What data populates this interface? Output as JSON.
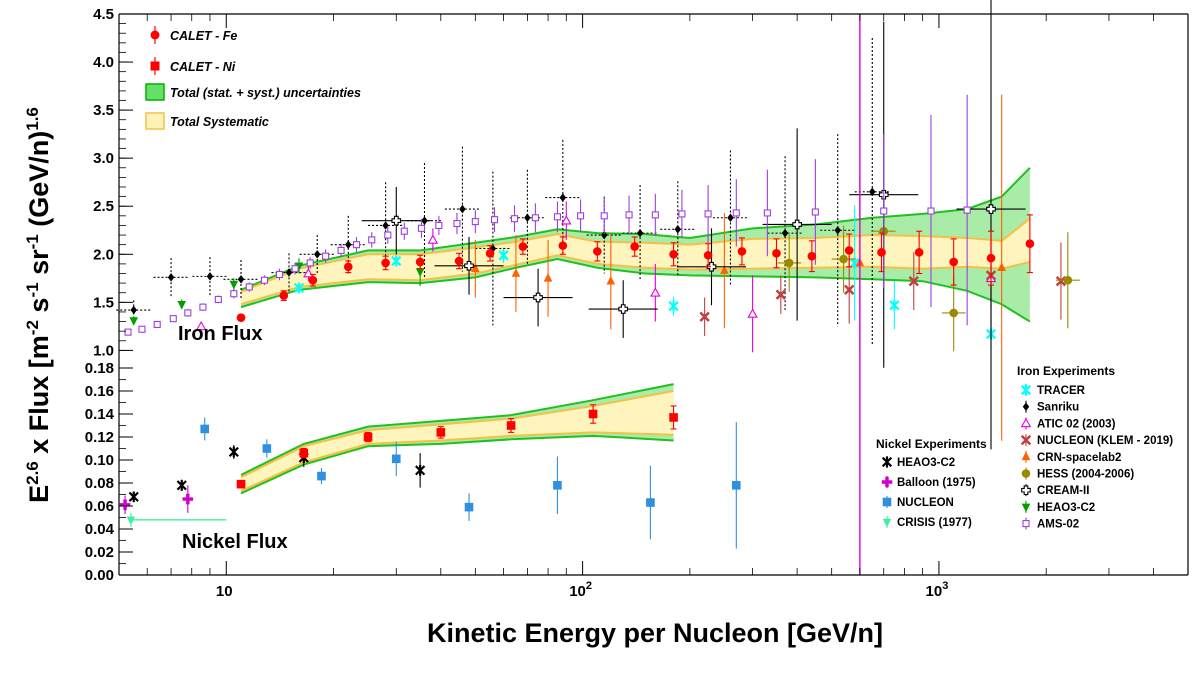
{
  "chart_data": {
    "type": "scatter",
    "xlabel": "Kinetic Energy per Nucleon [GeV/n]",
    "ylabel": "E^2.6 x Flux [m^-2 s^-1 sr^-1 (GeV/n)^1.6]",
    "ylabel_parts": {
      "e": "E",
      "e_exp": "2.6",
      "mid": " x Flux [m",
      "m_exp": "-2",
      "s": " s",
      "s_exp": "-1",
      "sr": " sr",
      "sr_exp": "-1",
      "gev": " (GeV/n)",
      "gev_exp": "1.6"
    },
    "x_scale": "log",
    "xlim": [
      5,
      5000
    ],
    "x_tick_labels": [
      "10",
      "10",
      "10"
    ],
    "x_tick_exponents": [
      "",
      "2",
      "3"
    ],
    "iron_panel": {
      "label": "Iron Flux",
      "ylim": [
        0.9,
        4.5
      ],
      "y_ticks": [
        "1.0",
        "1.5",
        "2.0",
        "2.5",
        "3.0",
        "3.5",
        "4.0",
        "4.5"
      ],
      "calet_legend": [
        {
          "label": "CALET - Fe",
          "color": "#ff0000"
        },
        {
          "label": "CALET - Ni",
          "color": "#ff0000"
        },
        {
          "label": "Total (stat. + syst.) uncertainties",
          "color": "#00c000"
        },
        {
          "label": "Total Systematic",
          "color": "#f3c04a"
        }
      ],
      "calet_fe": {
        "x": [
          11,
          14.5,
          17.5,
          22,
          28,
          35,
          45,
          55,
          68,
          88,
          110,
          140,
          180,
          225,
          280,
          350,
          440,
          560,
          690,
          880,
          1100,
          1400,
          1800
        ],
        "y": [
          1.34,
          1.57,
          1.73,
          1.87,
          1.91,
          1.92,
          1.93,
          2.01,
          2.08,
          2.09,
          2.03,
          2.08,
          2.0,
          1.99,
          2.03,
          2.01,
          1.98,
          2.04,
          2.02,
          2.02,
          1.92,
          1.96,
          2.11
        ],
        "err": [
          0.03,
          0.05,
          0.06,
          0.06,
          0.07,
          0.07,
          0.08,
          0.08,
          0.08,
          0.09,
          0.1,
          0.1,
          0.12,
          0.12,
          0.14,
          0.15,
          0.16,
          0.17,
          0.2,
          0.22,
          0.24,
          0.28,
          0.3
        ]
      },
      "total_band": {
        "x": [
          11,
          16,
          25,
          35,
          50,
          65,
          85,
          110,
          150,
          200,
          300,
          450,
          650,
          900,
          1200,
          1500,
          1800
        ],
        "lower": [
          1.45,
          1.63,
          1.71,
          1.7,
          1.76,
          1.86,
          1.95,
          1.86,
          1.8,
          1.78,
          1.77,
          1.76,
          1.74,
          1.72,
          1.62,
          1.48,
          1.3
        ],
        "upper": [
          1.63,
          1.88,
          2.04,
          2.04,
          2.12,
          2.18,
          2.26,
          2.22,
          2.21,
          2.17,
          2.27,
          2.31,
          2.38,
          2.42,
          2.47,
          2.6,
          2.9
        ]
      },
      "syst_band": {
        "x": [
          11,
          16,
          25,
          35,
          50,
          65,
          85,
          110,
          150,
          200,
          300,
          450,
          650,
          900,
          1200,
          1500,
          1800
        ],
        "lower": [
          1.48,
          1.66,
          1.74,
          1.73,
          1.8,
          1.89,
          1.99,
          1.9,
          1.86,
          1.84,
          1.85,
          1.86,
          1.87,
          1.85,
          1.87,
          1.85,
          1.92
        ],
        "upper": [
          1.61,
          1.85,
          2.0,
          2.0,
          2.07,
          2.13,
          2.21,
          2.13,
          2.12,
          2.1,
          2.16,
          2.17,
          2.2,
          2.19,
          2.17,
          2.14,
          2.37
        ]
      },
      "experiments_title": "Iron Experiments",
      "experiments": [
        {
          "name": "TRACER",
          "color": "#00ffff",
          "x": [
            16,
            30,
            60,
            180,
            580,
            750,
            1400
          ],
          "y": [
            1.65,
            1.93,
            1.99,
            1.46,
            1.91,
            1.47,
            1.17
          ],
          "err": [
            0.05,
            0.06,
            0.08,
            0.1,
            0.6,
            0.25,
            0.15
          ]
        },
        {
          "name": "Sanriku",
          "color": "#000000",
          "x": [
            5.5,
            7,
            9,
            11,
            15,
            18,
            22,
            28,
            36,
            46,
            56,
            70,
            88,
            115,
            145,
            185,
            260,
            370,
            520,
            650
          ],
          "y": [
            1.42,
            1.76,
            1.77,
            1.74,
            1.81,
            2.0,
            2.1,
            2.3,
            2.35,
            2.47,
            2.06,
            2.38,
            2.59,
            2.2,
            2.22,
            2.26,
            2.38,
            2.22,
            2.25,
            2.65
          ],
          "err": [
            0.1,
            0.2,
            0.2,
            0.2,
            0.2,
            0.2,
            0.3,
            0.45,
            0.6,
            0.65,
            0.8,
            0.5,
            0.6,
            0.4,
            0.5,
            0.5,
            0.7,
            0.8,
            1.0,
            1.6
          ]
        },
        {
          "name": "ATIC 02 (2003)",
          "color": "#e000e0",
          "x": [
            8.5,
            17,
            38,
            90,
            160,
            300,
            1400
          ],
          "y": [
            1.25,
            1.8,
            2.15,
            2.35,
            1.6,
            1.38,
            1.75
          ],
          "err": [
            0.03,
            0.08,
            0.12,
            0.2,
            0.3,
            0.4,
            0.5
          ]
        },
        {
          "name": "NUCLEON (KLEM - 2019)",
          "color": "#c04040",
          "x": [
            220,
            360,
            560,
            850,
            1400,
            2200
          ],
          "y": [
            1.35,
            1.58,
            1.63,
            1.72,
            1.78,
            1.72
          ],
          "err": [
            0.2,
            0.2,
            0.35,
            0.3,
            0.35,
            0.4
          ]
        },
        {
          "name": "CRN-spacelab2",
          "color": "#ff6000",
          "x": [
            50,
            65,
            80,
            120,
            250,
            600,
            1500
          ],
          "y": [
            1.85,
            1.8,
            1.75,
            1.72,
            1.83,
            1.91,
            1.86
          ],
          "err": [
            0.3,
            0.4,
            0.4,
            0.5,
            0.6,
            0.9,
            1.8
          ]
        },
        {
          "name": "HESS (2004-2006)",
          "color": "#9a8a00",
          "x": [
            380,
            540,
            700,
            1100,
            2300
          ],
          "y": [
            1.91,
            1.95,
            2.24,
            1.39,
            1.73
          ],
          "err": [
            0.3,
            0.35,
            0.4,
            0.4,
            0.5
          ]
        },
        {
          "name": "CREAM-II",
          "color": "#000000",
          "x": [
            30,
            48,
            75,
            130,
            230,
            400,
            700,
            1400
          ],
          "y": [
            2.35,
            1.88,
            1.55,
            1.43,
            1.87,
            2.31,
            2.62,
            2.47
          ],
          "err": [
            0.35,
            0.3,
            0.3,
            0.3,
            0.4,
            1.0,
            1.8,
            2.5
          ]
        },
        {
          "name": "HEAO3-C2",
          "color": "#00a000",
          "x": [
            5.5,
            7.5,
            10.5,
            16,
            35
          ],
          "y": [
            1.31,
            1.48,
            1.69,
            1.88,
            1.82
          ],
          "err": [
            0.04,
            0.05,
            0.06,
            0.08,
            0.15
          ]
        },
        {
          "name": "AMS-02",
          "color": "#9a40e0",
          "x": [
            5.3,
            5.8,
            6.4,
            7.1,
            7.8,
            8.6,
            9.5,
            10.5,
            11.6,
            12.8,
            14.1,
            15.6,
            17.2,
            19.0,
            21.0,
            23.2,
            25.6,
            28.4,
            31.6,
            35.3,
            39.5,
            44.4,
            50.0,
            56.6,
            64.4,
            73.7,
            85.0,
            98.7,
            115,
            135,
            160,
            190,
            225,
            270,
            330,
            450,
            700,
            950,
            1200
          ],
          "y": [
            1.19,
            1.22,
            1.27,
            1.33,
            1.39,
            1.45,
            1.53,
            1.59,
            1.66,
            1.73,
            1.79,
            1.85,
            1.91,
            1.98,
            2.04,
            2.1,
            2.15,
            2.2,
            2.24,
            2.27,
            2.3,
            2.32,
            2.34,
            2.36,
            2.37,
            2.38,
            2.39,
            2.4,
            2.4,
            2.41,
            2.41,
            2.42,
            2.42,
            2.43,
            2.43,
            2.44,
            2.45,
            2.45,
            2.46
          ],
          "err": [
            0.03,
            0.03,
            0.03,
            0.03,
            0.04,
            0.04,
            0.04,
            0.05,
            0.05,
            0.05,
            0.06,
            0.06,
            0.06,
            0.07,
            0.07,
            0.08,
            0.08,
            0.09,
            0.09,
            0.1,
            0.1,
            0.11,
            0.12,
            0.13,
            0.14,
            0.15,
            0.16,
            0.17,
            0.19,
            0.2,
            0.22,
            0.25,
            0.3,
            0.35,
            0.45,
            0.55,
            0.8,
            1.0,
            1.2
          ]
        }
      ]
    },
    "nickel_panel": {
      "label": "Nickel Flux",
      "ylim": [
        0.0,
        0.18
      ],
      "y_ticks": [
        "0.00",
        "0.02",
        "0.04",
        "0.06",
        "0.08",
        "0.10",
        "0.12",
        "0.14",
        "0.16",
        "0.18"
      ],
      "calet_ni": {
        "x": [
          11,
          16.5,
          25,
          40,
          63,
          107,
          180
        ],
        "y": [
          0.079,
          0.106,
          0.12,
          0.124,
          0.13,
          0.14,
          0.137
        ],
        "err": [
          0.003,
          0.004,
          0.004,
          0.005,
          0.006,
          0.008,
          0.01
        ]
      },
      "total_band": {
        "x": [
          11,
          16.5,
          25,
          40,
          63,
          107,
          180
        ],
        "lower": [
          0.071,
          0.096,
          0.112,
          0.114,
          0.118,
          0.121,
          0.117
        ],
        "upper": [
          0.087,
          0.114,
          0.129,
          0.134,
          0.139,
          0.152,
          0.166
        ]
      },
      "syst_band": {
        "x": [
          11,
          16.5,
          25,
          40,
          63,
          107,
          180
        ],
        "lower": [
          0.073,
          0.098,
          0.114,
          0.117,
          0.121,
          0.124,
          0.122
        ],
        "upper": [
          0.085,
          0.112,
          0.126,
          0.131,
          0.136,
          0.147,
          0.16
        ]
      },
      "experiments_title": "Nickel Experiments",
      "experiments": [
        {
          "name": "HEAO3-C2",
          "color": "#000000",
          "x": [
            5.5,
            7.5,
            10.5,
            16.5,
            35
          ],
          "y": [
            0.068,
            0.078,
            0.107,
            0.102,
            0.091
          ],
          "err": [
            0.004,
            0.005,
            0.006,
            0.008,
            0.015
          ]
        },
        {
          "name": "Balloon (1975)",
          "color": "#d000d0",
          "x": [
            5.2,
            7.8
          ],
          "y": [
            0.061,
            0.066
          ],
          "err": [
            0.008,
            0.012
          ]
        },
        {
          "name": "NUCLEON",
          "color": "#3090e0",
          "x": [
            8.7,
            13,
            18.5,
            30,
            48,
            85,
            155,
            270
          ],
          "y": [
            0.127,
            0.11,
            0.086,
            0.101,
            0.059,
            0.078,
            0.063,
            0.078
          ],
          "err": [
            0.01,
            0.008,
            0.007,
            0.015,
            0.012,
            0.025,
            0.032,
            0.055
          ]
        },
        {
          "name": "CRISIS (1977)",
          "color": "#40f0a0",
          "x": [
            5.4
          ],
          "y": [
            0.048
          ],
          "err": [
            0.006
          ],
          "xerr": [
            5.0,
            10.0
          ]
        }
      ]
    },
    "vertical_line": {
      "x": 600,
      "color": "#e000e0"
    }
  }
}
